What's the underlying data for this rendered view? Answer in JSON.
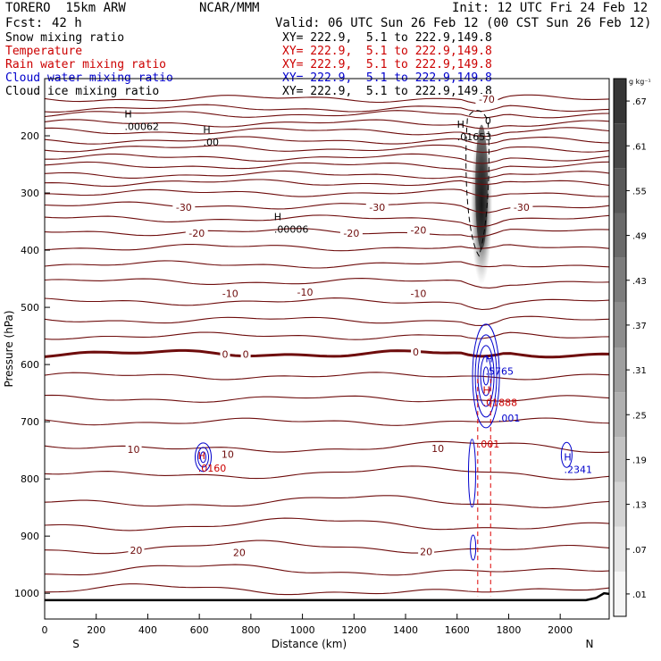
{
  "header": {
    "model": "TORERO  15km ARW",
    "org": "NCAR/MMM",
    "init": "Init: 12 UTC Fri 24 Feb 12",
    "fcst_label": "Fcst:",
    "fcst_value": "42 h",
    "valid": "Valid: 06 UTC Sun 26 Feb 12 (00 CST Sun 26 Feb 12)"
  },
  "legend": [
    {
      "label": "Snow mixing ratio",
      "xy": "XY= 222.9,  5.1 to 222.9,149.8",
      "color": "#000000"
    },
    {
      "label": "Temperature",
      "xy": "XY= 222.9,  5.1 to 222.9,149.8",
      "color": "#cc0000"
    },
    {
      "label": "Rain water mixing ratio",
      "xy": "XY= 222.9,  5.1 to 222.9,149.8",
      "color": "#cc0000"
    },
    {
      "label": "Cloud water mixing ratio",
      "xy": "XY= 222.9,  5.1 to 222.9,149.8",
      "color": "#0000cc"
    },
    {
      "label": "Cloud ice mixing ratio",
      "xy": "XY= 222.9,  5.1 to 222.9,149.8",
      "color": "#000000"
    }
  ],
  "chart_data": {
    "type": "contour",
    "xlabel": "Distance (km)",
    "ylabel": "Pressure (hPa)",
    "x_ticks": [
      0,
      200,
      400,
      600,
      800,
      1000,
      1200,
      1400,
      1600,
      1800,
      2000
    ],
    "x_range": [
      0,
      2190
    ],
    "y_ticks": [
      200,
      300,
      400,
      500,
      600,
      700,
      800,
      900,
      1000
    ],
    "y_range": [
      100,
      1045
    ],
    "left_end_label": "S",
    "right_end_label": "N",
    "colorbar_unit": "g kg⁻¹",
    "colorbar_ticks": [
      ".01",
      ".07",
      ".13",
      ".19",
      ".25",
      ".31",
      ".37",
      ".43",
      ".49",
      ".55",
      ".61",
      ".67"
    ],
    "temperature_contours": [
      {
        "level": -70,
        "label": "-70",
        "label_x": 1715,
        "label_p": 136
      },
      {
        "level": -30,
        "label": "-30",
        "label_x": 540,
        "label_p": 325
      },
      {
        "level": -30,
        "label": "-30",
        "label_x": 1290,
        "label_p": 325
      },
      {
        "level": -30,
        "label": "-30",
        "label_x": 1850,
        "label_p": 325
      },
      {
        "level": -20,
        "label": "-20",
        "label_x": 590,
        "label_p": 370
      },
      {
        "level": -20,
        "label": "-20",
        "label_x": 1190,
        "label_p": 370
      },
      {
        "level": -20,
        "label": "-20",
        "label_x": 1450,
        "label_p": 365
      },
      {
        "level": -10,
        "label": "-10",
        "label_x": 720,
        "label_p": 476
      },
      {
        "level": -10,
        "label": "-10",
        "label_x": 1010,
        "label_p": 473
      },
      {
        "level": -10,
        "label": "-10",
        "label_x": 1450,
        "label_p": 476
      },
      {
        "level": 0,
        "label": "0",
        "label_x": 700,
        "label_p": 582
      },
      {
        "level": 0,
        "label": "0",
        "label_x": 780,
        "label_p": 582
      },
      {
        "level": 0,
        "label": "0",
        "label_x": 1440,
        "label_p": 578
      },
      {
        "level": 10,
        "label": "10",
        "label_x": 345,
        "label_p": 748
      },
      {
        "level": 10,
        "label": "10",
        "label_x": 710,
        "label_p": 757
      },
      {
        "level": 10,
        "label": "10",
        "label_x": 1525,
        "label_p": 747
      },
      {
        "level": 20,
        "label": "20",
        "label_x": 355,
        "label_p": 925
      },
      {
        "level": 20,
        "label": "20",
        "label_x": 755,
        "label_p": 929
      },
      {
        "level": 20,
        "label": "20",
        "label_x": 1480,
        "label_p": 927
      }
    ],
    "max_markers": [
      {
        "x": 310,
        "p": 177,
        "letter": "H",
        "value": ".00062",
        "color": "#000000"
      },
      {
        "x": 615,
        "p": 205,
        "letter": "H",
        "value": ".00",
        "color": "#000000"
      },
      {
        "x": 890,
        "p": 357,
        "letter": "H",
        "value": ".00006",
        "color": "#000000"
      },
      {
        "x": 1600,
        "p": 195,
        "letter": "H",
        "value": ".01653",
        "color": "#000000"
      },
      {
        "x": 1710,
        "p": 605,
        "letter": "H",
        "value": ".5765",
        "color": "#0000cc"
      },
      {
        "x": 1700,
        "p": 660,
        "letter": "H",
        "value": ".01888",
        "color": "#cc0000"
      },
      {
        "x": 595,
        "p": 775,
        "letter": "H",
        "value": ".0160",
        "color": "#cc0000"
      },
      {
        "x": 2015,
        "p": 777,
        "letter": "H",
        "value": ".2341",
        "color": "#0000cc"
      }
    ],
    "contour_labels": [
      {
        "x": 1708,
        "p": 180,
        "text": "0",
        "color": "#000000"
      },
      {
        "x": 1760,
        "p": 700,
        "text": ".001",
        "color": "#0000cc"
      },
      {
        "x": 1680,
        "p": 745,
        "text": ".001",
        "color": "#cc0000"
      }
    ],
    "cloud_ice_max": 0.67
  }
}
